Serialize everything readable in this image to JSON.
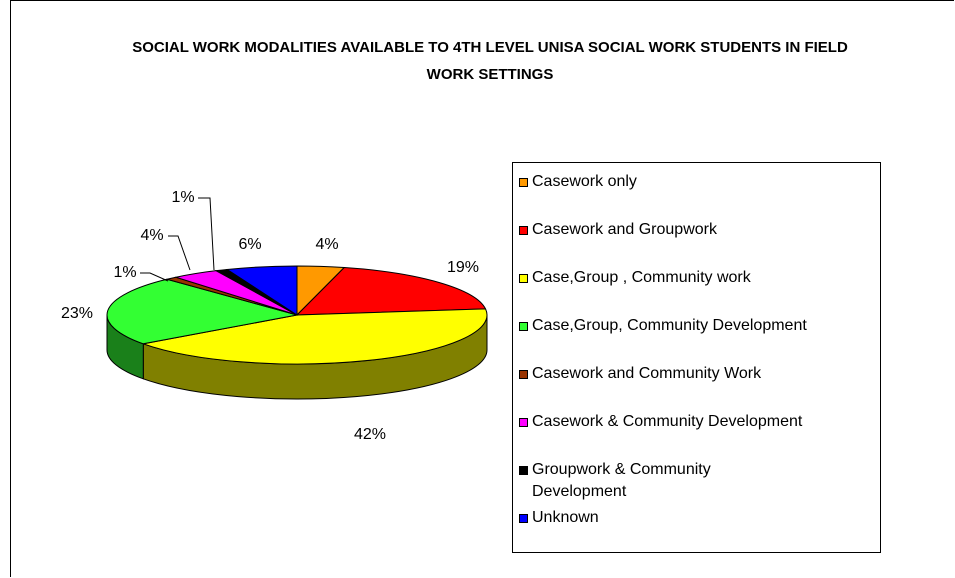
{
  "chart_data": {
    "type": "pie3d",
    "title": "SOCIAL WORK MODALITIES AVAILABLE TO 4TH LEVEL UNISA SOCIAL WORK STUDENTS IN FIELD WORK SETTINGS",
    "categories": [
      "Casework only",
      "Casework and Groupwork",
      "Case,Group , Community work",
      "Case,Group, Community Development",
      "Casework and Community Work",
      "Casework & Community Development",
      "Groupwork & Community Development",
      "Unknown"
    ],
    "values": [
      4,
      19,
      42,
      23,
      1,
      4,
      1,
      6
    ],
    "value_labels": [
      "4%",
      "19%",
      "42%",
      "23%",
      "1%",
      "4%",
      "1%",
      "6%"
    ],
    "colors": [
      "#ff9900",
      "#ff0000",
      "#ffff00",
      "#33ff33",
      "#993300",
      "#ff00ff",
      "#000000",
      "#0000ff"
    ],
    "legend": "right"
  }
}
